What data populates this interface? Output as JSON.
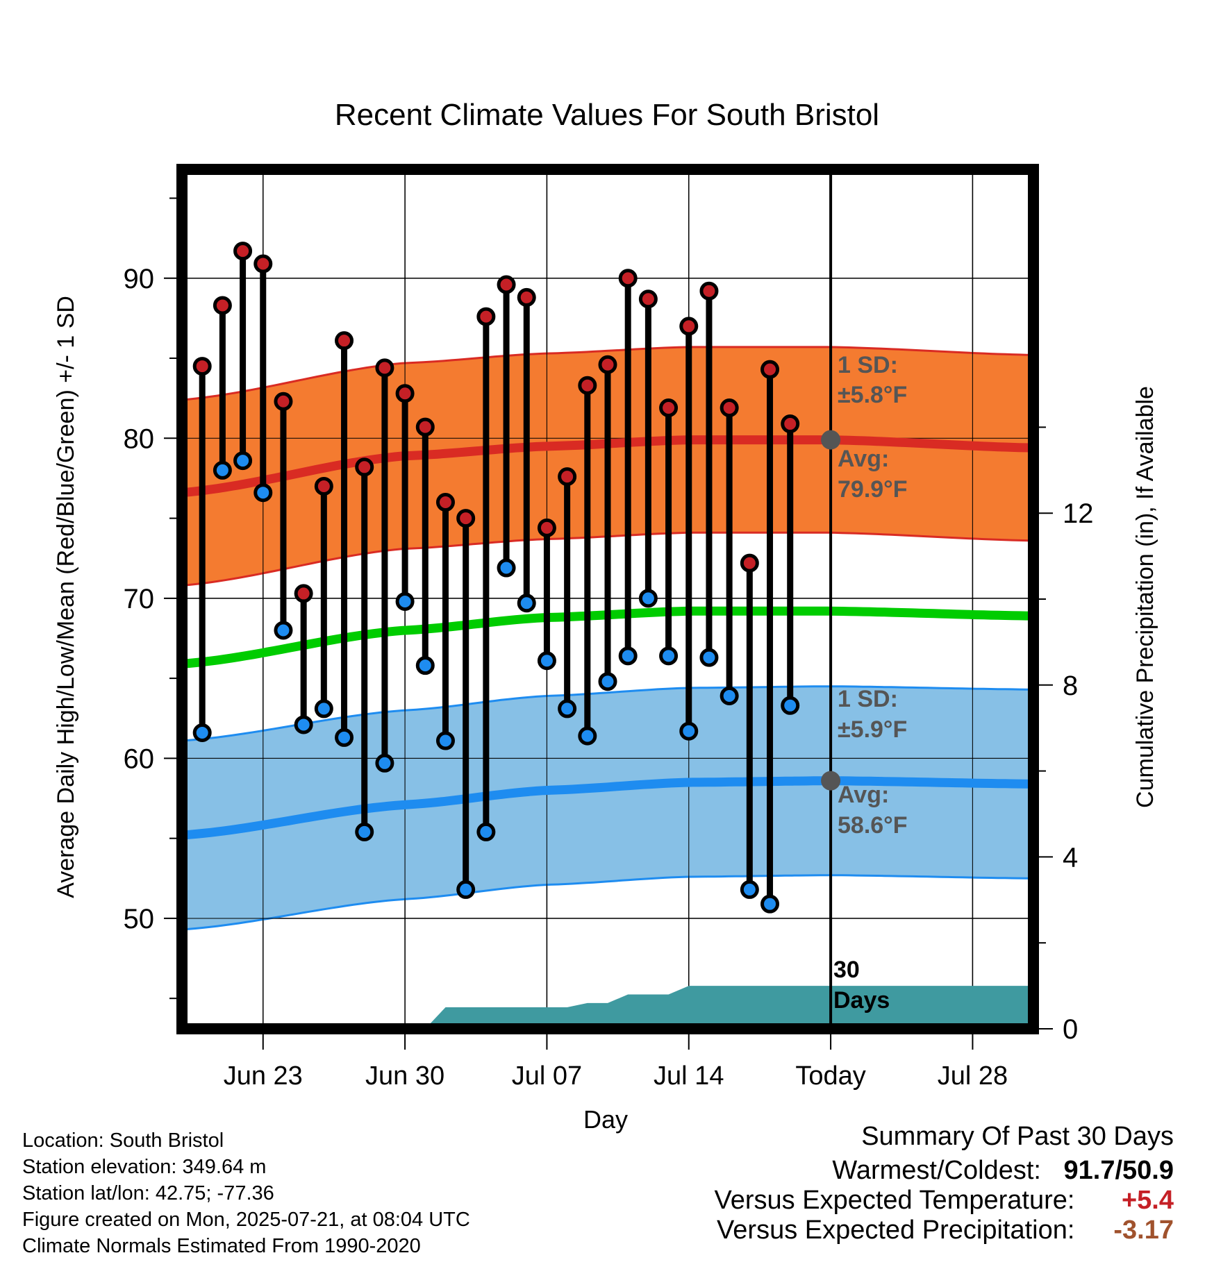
{
  "chart_data": {
    "type": "line",
    "title": "Recent Climate Values For South Bristol",
    "xlabel": "Day",
    "ylabel": "Average Daily High/Low/Mean (Red/Blue/Green) +/- 1 SD",
    "y2label": "Cumulative Precipitation (in), If Available",
    "x_ticks": [
      "Jun 23",
      "Jun 30",
      "Jul 07",
      "Jul 14",
      "Today",
      "Jul 28"
    ],
    "y_ticks": [
      50,
      60,
      70,
      80,
      90
    ],
    "y2_ticks": [
      0,
      4,
      8,
      12
    ],
    "ylim": [
      43.1,
      96.8
    ],
    "y2lim": [
      0,
      20
    ],
    "xlim": [
      "2025-06-19",
      "2025-07-31"
    ],
    "grid": true,
    "highs": [
      84.5,
      88.3,
      91.7,
      90.9,
      82.3,
      70.3,
      77.0,
      86.1,
      78.2,
      84.4,
      82.8,
      80.7,
      76.0,
      75.0,
      87.6,
      89.6,
      88.8,
      74.4,
      77.6,
      83.3,
      84.6,
      90.0,
      88.7,
      81.9,
      87.0,
      89.2,
      81.9,
      72.2,
      84.3,
      80.9
    ],
    "lows": [
      61.6,
      78.0,
      78.6,
      76.6,
      68.0,
      62.1,
      63.1,
      61.3,
      55.4,
      59.7,
      69.8,
      65.8,
      61.1,
      51.8,
      55.4,
      71.9,
      69.7,
      66.1,
      63.1,
      61.4,
      64.8,
      66.4,
      70.0,
      66.4,
      61.7,
      66.3,
      63.9,
      51.8,
      50.9,
      63.3
    ],
    "dates": [
      "2025-06-20",
      "2025-06-21",
      "2025-06-22",
      "2025-06-23",
      "2025-06-24",
      "2025-06-25",
      "2025-06-26",
      "2025-06-27",
      "2025-06-28",
      "2025-06-29",
      "2025-06-30",
      "2025-07-01",
      "2025-07-02",
      "2025-07-03",
      "2025-07-04",
      "2025-07-05",
      "2025-07-06",
      "2025-07-07",
      "2025-07-08",
      "2025-07-09",
      "2025-07-10",
      "2025-07-11",
      "2025-07-12",
      "2025-07-13",
      "2025-07-14",
      "2025-07-15",
      "2025-07-16",
      "2025-07-17",
      "2025-07-18",
      "2025-07-19"
    ],
    "normal_high": {
      "jun19": 76.6,
      "jun30": 78.9,
      "jul07": 79.5,
      "jul14": 79.9,
      "jul21": 79.9,
      "jul31": 79.4
    },
    "normal_low": {
      "jun19": 55.2,
      "jun30": 57.1,
      "jul07": 58.0,
      "jul14": 58.5,
      "jul21": 58.6,
      "jul31": 58.4
    },
    "normal_mean": {
      "jun19": 65.9,
      "jun30": 68.0,
      "jul07": 68.8,
      "jul14": 69.2,
      "jul21": 69.2,
      "jul31": 68.9
    },
    "high_sd": 5.8,
    "low_sd": 5.9,
    "cumulative_precip": [
      [
        0,
        0
      ],
      [
        12,
        0
      ],
      [
        13,
        0.5
      ],
      [
        19,
        0.5
      ],
      [
        20,
        0.6
      ],
      [
        21,
        0.6
      ],
      [
        22,
        0.8
      ],
      [
        24,
        0.8
      ],
      [
        25,
        1.0
      ],
      [
        42,
        1.0
      ]
    ],
    "annotations": {
      "high_sd_label": "1 SD:",
      "high_sd_value": "±5.8°F",
      "high_avg_label": "Avg:",
      "high_avg_value": "79.9°F",
      "low_sd_label": "1 SD:",
      "low_sd_value": "±5.9°F",
      "low_avg_label": "Avg:",
      "low_avg_value": "58.6°F",
      "window_label_1": "30",
      "window_label_2": "Days"
    },
    "colors": {
      "high_band": "#f47b30",
      "high_line": "#d92b23",
      "low_band": "#87c0e6",
      "low_line": "#1e8cf0",
      "mean_line": "#00cc00",
      "precip": "#3f9aa0",
      "high_marker": "#c52026",
      "low_marker": "#1e8cf0",
      "annotation_text": "#555555"
    }
  },
  "footer": {
    "location": "Location: South Bristol",
    "elevation": "Station elevation: 349.64 m",
    "latlon": "Station lat/lon: 42.75; -77.36",
    "created": "Figure created on Mon, 2025-07-21, at 08:04 UTC",
    "normals": "Climate Normals Estimated From 1990-2020"
  },
  "summary": {
    "title": "Summary Of Past 30 Days",
    "warmest_label": "Warmest/Coldest:",
    "warmest_value": "91.7/50.9",
    "temp_label": "Versus Expected Temperature:",
    "temp_value": "+5.4",
    "temp_color": "#c52026",
    "precip_label": "Versus Expected Precipitation:",
    "precip_value": "-3.17",
    "precip_color": "#a0522d"
  }
}
